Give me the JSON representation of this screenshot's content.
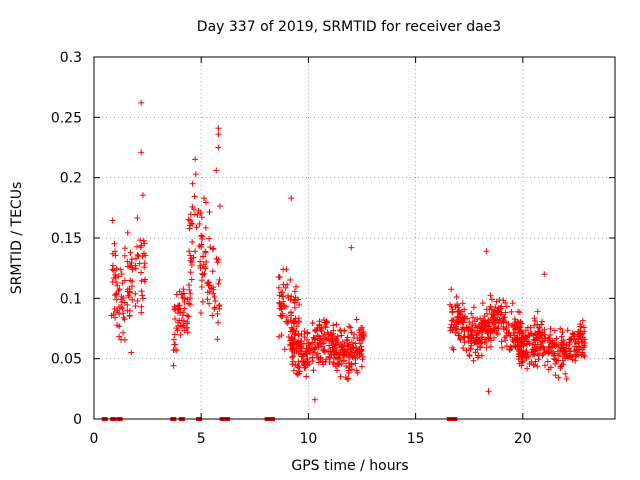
{
  "chart_data": {
    "type": "scatter",
    "title": "Day 337 of 2019, SRMTID for receiver dae3",
    "xlabel": "GPS time / hours",
    "ylabel": "SRMTID / TECUs",
    "xlim": [
      0,
      24.3
    ],
    "ylim": [
      0,
      0.3
    ],
    "xticks": [
      0,
      5,
      10,
      15,
      20
    ],
    "yticks": [
      0,
      0.05,
      0.1,
      0.15,
      0.2,
      0.25,
      0.3
    ],
    "xtick_labels": [
      "0",
      "5",
      "10",
      "15",
      "20"
    ],
    "ytick_labels": [
      "0",
      "0.05",
      "0.1",
      "0.15",
      "0.2",
      "0.25",
      "0.3"
    ],
    "grid": true,
    "marker": "+",
    "color": "#ff0000",
    "segments": [
      {
        "start": 0.8,
        "end": 2.4,
        "mean": 0.115,
        "spread": 0.042,
        "count": 110
      },
      {
        "start": 3.7,
        "end": 4.5,
        "mean": 0.085,
        "spread": 0.025,
        "count": 60
      },
      {
        "start": 4.4,
        "end": 5.9,
        "mean": 0.135,
        "spread": 0.045,
        "count": 95
      },
      {
        "start": 8.6,
        "end": 9.6,
        "mean": 0.085,
        "spread": 0.028,
        "count": 80
      },
      {
        "start": 9.2,
        "end": 12.6,
        "mean": 0.06,
        "spread": 0.018,
        "count": 330
      },
      {
        "start": 16.6,
        "end": 20.0,
        "mean": 0.075,
        "spread": 0.018,
        "count": 330
      },
      {
        "start": 19.8,
        "end": 22.9,
        "mean": 0.06,
        "spread": 0.016,
        "count": 270
      }
    ],
    "outliers": [
      {
        "x": 2.2,
        "y": 0.262
      },
      {
        "x": 2.2,
        "y": 0.221
      },
      {
        "x": 5.8,
        "y": 0.241
      },
      {
        "x": 5.8,
        "y": 0.236
      },
      {
        "x": 5.8,
        "y": 0.225
      },
      {
        "x": 5.7,
        "y": 0.206
      },
      {
        "x": 4.6,
        "y": 0.195
      },
      {
        "x": 9.2,
        "y": 0.183
      },
      {
        "x": 18.3,
        "y": 0.139
      },
      {
        "x": 12.0,
        "y": 0.142
      },
      {
        "x": 21.0,
        "y": 0.12
      },
      {
        "x": 18.4,
        "y": 0.023
      },
      {
        "x": 10.3,
        "y": 0.016
      }
    ],
    "zero_markers": [
      0.5,
      0.9,
      1.2,
      3.7,
      4.1,
      4.9,
      6.0,
      6.2,
      8.1,
      8.3,
      16.6,
      16.8
    ]
  }
}
